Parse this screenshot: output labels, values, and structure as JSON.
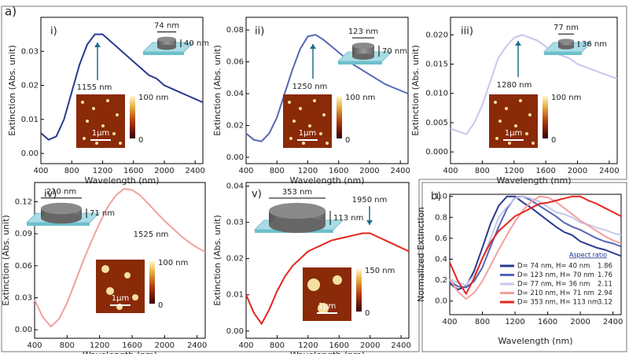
{
  "figure_label": "a)",
  "chart_data": [
    {
      "type": "line",
      "panel_label": "i)",
      "x_label": "Wavelength (nm)",
      "y_label": "Extinction (Abs. unit)",
      "x": [
        400,
        500,
        600,
        700,
        800,
        900,
        1000,
        1100,
        1200,
        1300,
        1400,
        1500,
        1600,
        1700,
        1800,
        1900,
        2000,
        2100,
        2200,
        2300,
        2400,
        2500
      ],
      "values": [
        0.006,
        0.004,
        0.005,
        0.01,
        0.018,
        0.026,
        0.032,
        0.035,
        0.035,
        0.033,
        0.031,
        0.029,
        0.027,
        0.025,
        0.023,
        0.022,
        0.02,
        0.019,
        0.018,
        0.017,
        0.016,
        0.015
      ],
      "color": "#2a3a8f",
      "xlim": [
        400,
        2500
      ],
      "ylim": [
        -0.003,
        0.04
      ],
      "xticks": [
        400,
        800,
        1200,
        1600,
        2000,
        2400
      ],
      "yticks": [
        {
          "value": 0,
          "label": "0.00"
        },
        0.01,
        0.02,
        0.03
      ],
      "annotations": {
        "peak": "1155 nm",
        "diameter": "74 nm",
        "height": "40 nm",
        "colorbar_max": "100 nm",
        "colorbar_min": "0",
        "scale_bar": "1μm"
      }
    },
    {
      "type": "line",
      "panel_label": "ii)",
      "x_label": "Wavelength (nm)",
      "y_label": "Extinction (Abs. unit)",
      "x": [
        400,
        500,
        600,
        700,
        800,
        900,
        1000,
        1100,
        1200,
        1300,
        1400,
        1500,
        1600,
        1700,
        1800,
        1900,
        2000,
        2100,
        2200,
        2300,
        2400,
        2500
      ],
      "values": [
        0.015,
        0.011,
        0.01,
        0.015,
        0.025,
        0.04,
        0.055,
        0.068,
        0.076,
        0.077,
        0.074,
        0.07,
        0.066,
        0.062,
        0.058,
        0.055,
        0.052,
        0.049,
        0.046,
        0.044,
        0.042,
        0.04
      ],
      "color": "#5566b5",
      "xlim": [
        400,
        2500
      ],
      "ylim": [
        -0.004,
        0.088
      ],
      "xticks": [
        400,
        800,
        1200,
        1600,
        2000,
        2400
      ],
      "yticks": [
        {
          "value": 0,
          "label": "0.00"
        },
        0.02,
        0.04,
        0.06,
        0.08
      ],
      "annotations": {
        "peak": "1250 nm",
        "diameter": "123 nm",
        "height": "70 nm",
        "colorbar_max": "100 nm",
        "colorbar_min": "0",
        "scale_bar": "1μm"
      }
    },
    {
      "type": "line",
      "panel_label": "iii)",
      "x_label": "Wavelength (nm)",
      "y_label": "Extinction (Abs. unit)",
      "x": [
        400,
        500,
        600,
        700,
        800,
        900,
        1000,
        1100,
        1200,
        1300,
        1400,
        1500,
        1600,
        1700,
        1800,
        1900,
        2000,
        2100,
        2200,
        2300,
        2400,
        2500
      ],
      "values": [
        0.004,
        0.0035,
        0.003,
        0.005,
        0.008,
        0.012,
        0.016,
        0.018,
        0.0195,
        0.02,
        0.0195,
        0.019,
        0.018,
        0.017,
        0.0165,
        0.016,
        0.015,
        0.0145,
        0.014,
        0.0135,
        0.013,
        0.0125
      ],
      "color": "#c5c8ea",
      "xlim": [
        400,
        2500
      ],
      "ylim": [
        -0.002,
        0.023
      ],
      "xticks": [
        400,
        800,
        1200,
        1600,
        2000,
        2400
      ],
      "yticks": [
        {
          "value": 0,
          "label": "0.000"
        },
        0.005,
        {
          "value": 0.01,
          "label": "0.010"
        },
        0.015,
        {
          "value": 0.02,
          "label": "0.020"
        }
      ],
      "annotations": {
        "peak": "1280 nm",
        "diameter": "77 nm",
        "height": "36 nm",
        "colorbar_max": "100 nm",
        "colorbar_min": "0",
        "scale_bar": "1μm"
      }
    },
    {
      "type": "line",
      "panel_label": "iv)",
      "x_label": "Wavelength (nm)",
      "y_label": "Extinction (Abs. unit)",
      "x": [
        400,
        500,
        600,
        700,
        800,
        900,
        1000,
        1100,
        1200,
        1300,
        1400,
        1500,
        1600,
        1700,
        1800,
        1900,
        2000,
        2100,
        2200,
        2300,
        2400,
        2500
      ],
      "values": [
        0.028,
        0.012,
        0.003,
        0.01,
        0.025,
        0.045,
        0.065,
        0.083,
        0.1,
        0.115,
        0.126,
        0.132,
        0.131,
        0.126,
        0.118,
        0.11,
        0.102,
        0.095,
        0.088,
        0.082,
        0.077,
        0.073
      ],
      "color": "#f2a0a0",
      "xlim": [
        400,
        2500
      ],
      "ylim": [
        -0.008,
        0.138
      ],
      "xticks": [
        400,
        800,
        1200,
        1600,
        2000,
        2400
      ],
      "yticks": [
        {
          "value": 0,
          "label": "0.00"
        },
        0.03,
        0.06,
        0.09,
        0.12
      ],
      "annotations": {
        "peak": "1525 nm",
        "diameter": "210 nm",
        "height": "71 nm",
        "colorbar_max": "100 nm",
        "colorbar_min": "0",
        "scale_bar": "1μm"
      }
    },
    {
      "type": "line",
      "panel_label": "v)",
      "x_label": "Wavelength (nm)",
      "y_label": "Extinction (Abs. unit)",
      "x": [
        400,
        500,
        600,
        700,
        800,
        900,
        1000,
        1100,
        1200,
        1300,
        1400,
        1500,
        1600,
        1700,
        1800,
        1900,
        2000,
        2100,
        2200,
        2300,
        2400,
        2500
      ],
      "values": [
        0.01,
        0.005,
        0.002,
        0.006,
        0.011,
        0.015,
        0.018,
        0.02,
        0.022,
        0.023,
        0.024,
        0.025,
        0.0255,
        0.026,
        0.0265,
        0.027,
        0.027,
        0.026,
        0.025,
        0.024,
        0.023,
        0.022
      ],
      "color": "#e3261f",
      "xlim": [
        400,
        2500
      ],
      "ylim": [
        -0.002,
        0.041
      ],
      "xticks": [
        400,
        800,
        1200,
        1600,
        2000,
        2400
      ],
      "yticks": [
        {
          "value": 0,
          "label": "0.00"
        },
        0.01,
        0.02,
        0.03,
        0.04
      ],
      "annotations": {
        "peak": "1950 nm",
        "diameter": "353 nm",
        "height": "113 nm",
        "colorbar_max": "150 nm",
        "colorbar_min": "0",
        "scale_bar": "1μm"
      }
    },
    {
      "type": "multiline",
      "panel_label": "b)",
      "x_label": "Wavelength (nm)",
      "y_label": "Normalized Extinction",
      "legend_title": "Aspect ratio",
      "legend": "lower right",
      "x": [
        400,
        500,
        600,
        700,
        800,
        900,
        1000,
        1100,
        1200,
        1300,
        1400,
        1500,
        1600,
        1700,
        1800,
        1900,
        2000,
        2100,
        2200,
        2300,
        2400,
        2500
      ],
      "series": [
        {
          "name": "D= 74 nm, H= 40 nm",
          "aspect_ratio": 1.86,
          "color": "#2a3a8f",
          "values": [
            0.17,
            0.11,
            0.14,
            0.29,
            0.51,
            0.74,
            0.91,
            1.0,
            1.0,
            0.94,
            0.89,
            0.83,
            0.77,
            0.71,
            0.66,
            0.63,
            0.57,
            0.54,
            0.51,
            0.49,
            0.46,
            0.43
          ]
        },
        {
          "name": "D= 123 nm, H= 70 nm",
          "aspect_ratio": 1.76,
          "color": "#5566b5",
          "values": [
            0.19,
            0.14,
            0.13,
            0.19,
            0.32,
            0.52,
            0.71,
            0.88,
            0.99,
            1.0,
            0.96,
            0.91,
            0.86,
            0.81,
            0.75,
            0.71,
            0.68,
            0.64,
            0.6,
            0.57,
            0.55,
            0.52
          ]
        },
        {
          "name": "D= 77 nm, H= 36 nm",
          "aspect_ratio": 2.11,
          "color": "#c5c8ea",
          "values": [
            0.2,
            0.18,
            0.15,
            0.25,
            0.4,
            0.6,
            0.8,
            0.9,
            0.98,
            1.0,
            0.98,
            0.95,
            0.9,
            0.85,
            0.83,
            0.8,
            0.75,
            0.73,
            0.7,
            0.68,
            0.65,
            0.63
          ]
        },
        {
          "name": "D= 210 nm, H= 71 nm",
          "aspect_ratio": 2.94,
          "color": "#f2a0a0",
          "values": [
            0.21,
            0.09,
            0.02,
            0.08,
            0.19,
            0.34,
            0.49,
            0.63,
            0.76,
            0.87,
            0.95,
            1.0,
            0.99,
            0.95,
            0.89,
            0.83,
            0.77,
            0.72,
            0.67,
            0.62,
            0.58,
            0.55
          ]
        },
        {
          "name": "D= 353 nm, H= 113 nm",
          "aspect_ratio": 3.12,
          "color": "#e3261f",
          "values": [
            0.37,
            0.19,
            0.07,
            0.22,
            0.41,
            0.56,
            0.67,
            0.74,
            0.81,
            0.85,
            0.89,
            0.93,
            0.94,
            0.96,
            0.98,
            1.0,
            1.0,
            0.96,
            0.93,
            0.89,
            0.85,
            0.81
          ]
        }
      ],
      "xlim": [
        400,
        2500
      ],
      "ylim": [
        -0.13,
        1.02
      ],
      "xticks": [
        400,
        800,
        1200,
        1600,
        2000,
        2400
      ],
      "yticks": [
        {
          "value": 0,
          "label": "0.0"
        },
        0.2,
        0.4,
        0.6,
        0.8,
        {
          "value": 1,
          "label": "1.0"
        }
      ]
    }
  ]
}
